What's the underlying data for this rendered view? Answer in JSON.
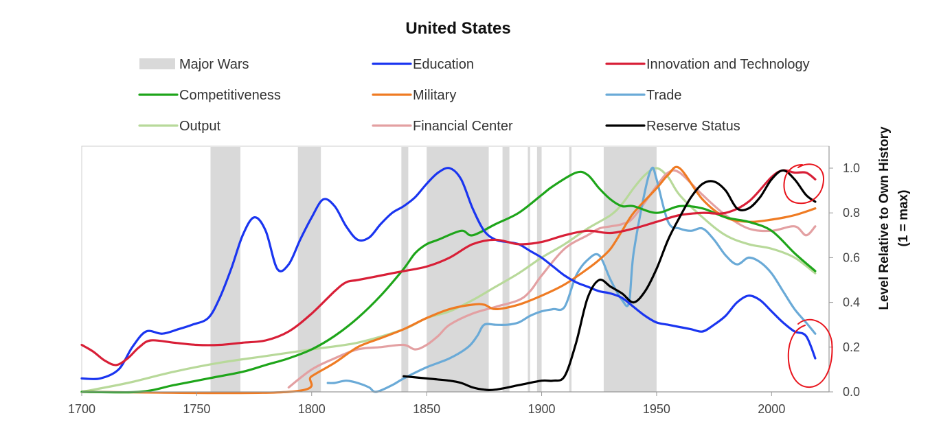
{
  "chart_data": {
    "type": "line",
    "title": "United States",
    "xlabel": "",
    "ylabel": "Level Relative to Own History",
    "ylabel_sub": "(1 = max)",
    "xlim": [
      1700,
      2025
    ],
    "ylim": [
      0,
      1.05
    ],
    "x_ticks": [
      1700,
      1750,
      1800,
      1850,
      1900,
      1950,
      2000
    ],
    "y_ticks": [
      0.0,
      0.2,
      0.4,
      0.6,
      0.8,
      1.0
    ],
    "y_tick_labels": [
      "0.0",
      "0.2",
      "0.4",
      "0.6",
      "0.8",
      "1.0"
    ],
    "wars_label": "Major Wars",
    "wars_color": "#d9d9d9",
    "wars": [
      [
        1756,
        1769
      ],
      [
        1794,
        1804
      ],
      [
        1839,
        1842
      ],
      [
        1850,
        1877
      ],
      [
        1883,
        1886
      ],
      [
        1894,
        1895
      ],
      [
        1898,
        1900
      ],
      [
        1912,
        1913
      ],
      [
        1927,
        1950
      ]
    ],
    "annotation_color": "#e8141c",
    "series": [
      {
        "name": "Education",
        "color": "#1a35f0",
        "x": [
          1700,
          1708,
          1716,
          1722,
          1728,
          1735,
          1742,
          1748,
          1755,
          1760,
          1765,
          1770,
          1775,
          1780,
          1785,
          1790,
          1795,
          1800,
          1805,
          1810,
          1815,
          1820,
          1825,
          1830,
          1835,
          1840,
          1845,
          1850,
          1855,
          1860,
          1865,
          1870,
          1875,
          1880,
          1885,
          1890,
          1895,
          1900,
          1905,
          1910,
          1915,
          1920,
          1925,
          1930,
          1935,
          1940,
          1945,
          1950,
          1955,
          1960,
          1965,
          1970,
          1975,
          1980,
          1985,
          1990,
          1995,
          2000,
          2005,
          2010,
          2015,
          2019
        ],
        "values": [
          0.06,
          0.06,
          0.1,
          0.2,
          0.27,
          0.26,
          0.28,
          0.3,
          0.33,
          0.42,
          0.55,
          0.7,
          0.78,
          0.72,
          0.55,
          0.57,
          0.68,
          0.78,
          0.86,
          0.83,
          0.74,
          0.68,
          0.69,
          0.75,
          0.8,
          0.83,
          0.87,
          0.93,
          0.98,
          1.0,
          0.95,
          0.82,
          0.72,
          0.68,
          0.67,
          0.66,
          0.63,
          0.6,
          0.56,
          0.52,
          0.49,
          0.47,
          0.45,
          0.44,
          0.42,
          0.38,
          0.34,
          0.31,
          0.3,
          0.29,
          0.28,
          0.27,
          0.3,
          0.34,
          0.4,
          0.43,
          0.41,
          0.36,
          0.31,
          0.27,
          0.25,
          0.15
        ]
      },
      {
        "name": "Competitiveness",
        "color": "#1ea51a",
        "x": [
          1700,
          1725,
          1740,
          1755,
          1770,
          1780,
          1790,
          1800,
          1810,
          1820,
          1830,
          1840,
          1845,
          1850,
          1855,
          1865,
          1870,
          1880,
          1890,
          1900,
          1905,
          1915,
          1920,
          1925,
          1930,
          1935,
          1940,
          1950,
          1960,
          1970,
          1980,
          1990,
          2000,
          2010,
          2019
        ],
        "values": [
          0.0,
          0.0,
          0.03,
          0.06,
          0.09,
          0.12,
          0.15,
          0.19,
          0.25,
          0.33,
          0.43,
          0.55,
          0.62,
          0.66,
          0.68,
          0.72,
          0.7,
          0.75,
          0.8,
          0.88,
          0.92,
          0.98,
          0.97,
          0.91,
          0.86,
          0.83,
          0.83,
          0.8,
          0.83,
          0.82,
          0.78,
          0.76,
          0.72,
          0.62,
          0.54
        ]
      },
      {
        "name": "Output",
        "color": "#b8d99a",
        "x": [
          1700,
          1720,
          1740,
          1760,
          1780,
          1800,
          1820,
          1840,
          1850,
          1860,
          1870,
          1880,
          1890,
          1900,
          1910,
          1920,
          1930,
          1935,
          1940,
          1945,
          1950,
          1955,
          1960,
          1970,
          1980,
          1990,
          2000,
          2010,
          2019
        ],
        "values": [
          0.0,
          0.04,
          0.09,
          0.13,
          0.16,
          0.19,
          0.22,
          0.28,
          0.33,
          0.36,
          0.41,
          0.47,
          0.53,
          0.6,
          0.66,
          0.73,
          0.79,
          0.84,
          0.91,
          0.97,
          1.0,
          0.96,
          0.88,
          0.78,
          0.7,
          0.66,
          0.64,
          0.6,
          0.53
        ]
      },
      {
        "name": "Military",
        "color": "#ef7b23",
        "x": [
          1700,
          1790,
          1800,
          1810,
          1820,
          1830,
          1840,
          1850,
          1860,
          1870,
          1875,
          1880,
          1890,
          1900,
          1910,
          1920,
          1925,
          1930,
          1935,
          1940,
          1950,
          1955,
          1960,
          1970,
          1980,
          1990,
          2000,
          2010,
          2019
        ],
        "values": [
          0.0,
          0.0,
          0.07,
          0.13,
          0.2,
          0.24,
          0.28,
          0.33,
          0.37,
          0.39,
          0.39,
          0.37,
          0.39,
          0.43,
          0.48,
          0.55,
          0.59,
          0.64,
          0.72,
          0.8,
          0.91,
          0.97,
          1.0,
          0.86,
          0.78,
          0.76,
          0.77,
          0.79,
          0.82
        ]
      },
      {
        "name": "Financial Center",
        "color": "#e3a0a2",
        "x": [
          1790,
          1800,
          1810,
          1820,
          1830,
          1840,
          1845,
          1850,
          1855,
          1860,
          1870,
          1880,
          1890,
          1895,
          1900,
          1910,
          1920,
          1925,
          1930,
          1935,
          1940,
          1950,
          1955,
          1960,
          1970,
          1980,
          1990,
          2000,
          2010,
          2015,
          2019
        ],
        "values": [
          0.02,
          0.1,
          0.15,
          0.19,
          0.2,
          0.21,
          0.19,
          0.21,
          0.25,
          0.3,
          0.35,
          0.38,
          0.41,
          0.45,
          0.52,
          0.64,
          0.7,
          0.73,
          0.74,
          0.75,
          0.78,
          0.92,
          0.98,
          0.98,
          0.88,
          0.79,
          0.73,
          0.72,
          0.74,
          0.7,
          0.74
        ]
      },
      {
        "name": "Innovation and Technology",
        "color": "#d81f37",
        "x": [
          1700,
          1705,
          1710,
          1715,
          1720,
          1725,
          1730,
          1740,
          1750,
          1760,
          1770,
          1780,
          1790,
          1800,
          1810,
          1815,
          1820,
          1830,
          1840,
          1850,
          1860,
          1870,
          1880,
          1890,
          1900,
          1910,
          1920,
          1930,
          1940,
          1950,
          1960,
          1970,
          1980,
          1990,
          2000,
          2005,
          2010,
          2015,
          2019
        ],
        "values": [
          0.21,
          0.18,
          0.14,
          0.12,
          0.15,
          0.2,
          0.23,
          0.22,
          0.21,
          0.21,
          0.22,
          0.23,
          0.27,
          0.35,
          0.45,
          0.49,
          0.5,
          0.52,
          0.54,
          0.56,
          0.6,
          0.66,
          0.68,
          0.66,
          0.67,
          0.7,
          0.72,
          0.71,
          0.73,
          0.76,
          0.79,
          0.8,
          0.8,
          0.85,
          0.96,
          0.99,
          0.98,
          0.98,
          0.95
        ]
      },
      {
        "name": "Trade",
        "color": "#6aaad7",
        "x": [
          1807,
          1810,
          1815,
          1820,
          1825,
          1828,
          1835,
          1840,
          1850,
          1860,
          1868,
          1872,
          1875,
          1880,
          1885,
          1890,
          1895,
          1900,
          1905,
          1910,
          1915,
          1920,
          1925,
          1930,
          1935,
          1938,
          1940,
          1945,
          1948,
          1950,
          1955,
          1960,
          1965,
          1970,
          1975,
          1980,
          1985,
          1990,
          1995,
          2000,
          2005,
          2010,
          2015,
          2019
        ],
        "values": [
          0.04,
          0.04,
          0.05,
          0.04,
          0.02,
          0.0,
          0.03,
          0.06,
          0.11,
          0.15,
          0.2,
          0.25,
          0.3,
          0.3,
          0.3,
          0.31,
          0.34,
          0.36,
          0.37,
          0.38,
          0.52,
          0.59,
          0.61,
          0.5,
          0.41,
          0.4,
          0.62,
          0.9,
          1.0,
          0.95,
          0.76,
          0.73,
          0.72,
          0.73,
          0.68,
          0.61,
          0.57,
          0.6,
          0.58,
          0.53,
          0.45,
          0.37,
          0.31,
          0.26
        ]
      },
      {
        "name": "Reserve Status",
        "color": "#000000",
        "x": [
          1840,
          1850,
          1860,
          1865,
          1870,
          1875,
          1880,
          1890,
          1900,
          1905,
          1910,
          1915,
          1920,
          1925,
          1930,
          1935,
          1940,
          1945,
          1950,
          1955,
          1960,
          1965,
          1970,
          1975,
          1980,
          1985,
          1990,
          1995,
          2000,
          2005,
          2010,
          2015,
          2019
        ],
        "values": [
          0.07,
          0.06,
          0.05,
          0.04,
          0.02,
          0.01,
          0.01,
          0.03,
          0.05,
          0.05,
          0.07,
          0.22,
          0.42,
          0.5,
          0.47,
          0.44,
          0.4,
          0.45,
          0.55,
          0.68,
          0.78,
          0.87,
          0.93,
          0.94,
          0.9,
          0.82,
          0.82,
          0.87,
          0.95,
          0.99,
          0.95,
          0.88,
          0.85
        ]
      }
    ]
  }
}
